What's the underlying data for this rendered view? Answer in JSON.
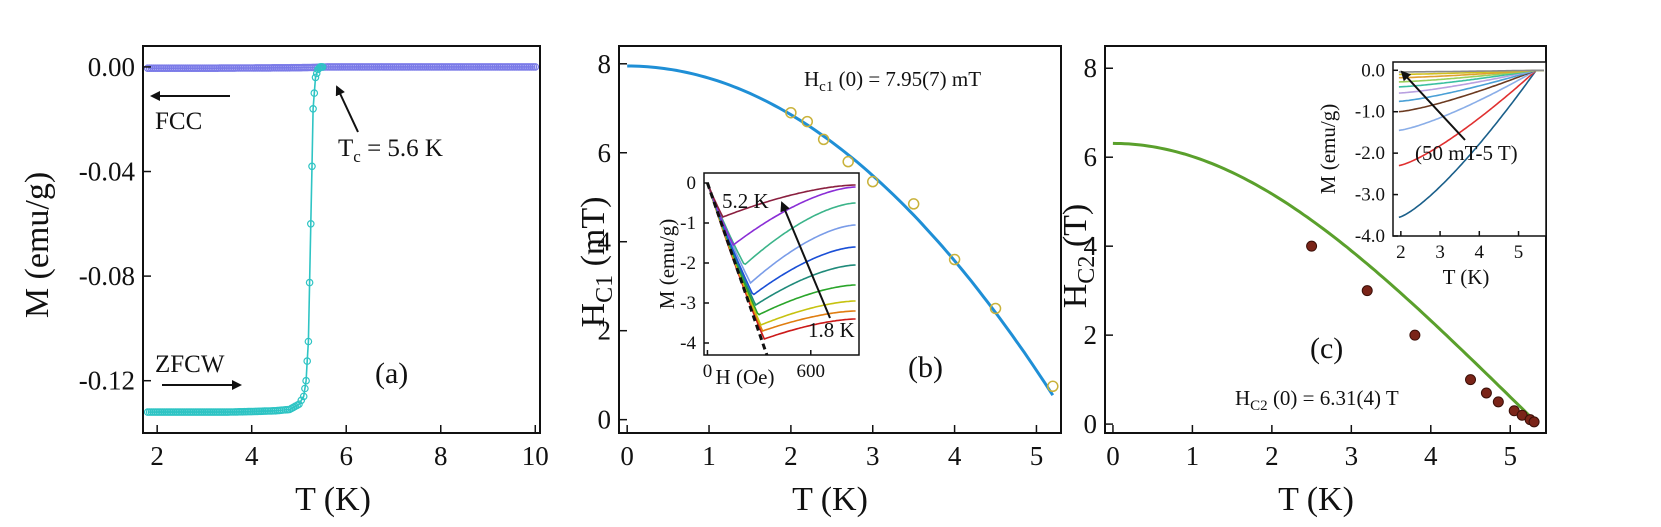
{
  "panels": {
    "a": {
      "label": "(a)",
      "xlabel": "T (K)",
      "ylabel": "M (emu/g)",
      "xticks": [
        "2",
        "4",
        "6",
        "8",
        "10"
      ],
      "yticks": [
        "0.00",
        "-0.04",
        "-0.08",
        "-0.12"
      ],
      "annot_fcc": "FCC",
      "annot_zfcw": "ZFCW",
      "annot_tc_main": "T",
      "annot_tc_sub": "c",
      "annot_tc_rest": " = 5.6 K"
    },
    "b": {
      "label": "(b)",
      "xlabel": "T (K)",
      "ylabel_main": "H",
      "ylabel_sub": "C1",
      "ylabel_rest": " (mT)",
      "xticks": [
        "0",
        "1",
        "2",
        "3",
        "4",
        "5"
      ],
      "yticks": [
        "0",
        "2",
        "4",
        "6",
        "8"
      ],
      "annot_main": "H",
      "annot_sub": "c1",
      "annot_rest": " (0) = 7.95(7) mT",
      "inset": {
        "xlabel": "H (Oe)",
        "ylabel": "M (emu/g)",
        "xticks": [
          "0",
          "600"
        ],
        "yticks": [
          "0",
          "-1",
          "-2",
          "-3",
          "-4"
        ],
        "annot_top": "5.2 K",
        "annot_bottom": "1.8 K"
      }
    },
    "c": {
      "label": "(c)",
      "xlabel": "T (K)",
      "ylabel_main": "H",
      "ylabel_sub": "C2",
      "ylabel_rest": " (T)",
      "xticks": [
        "0",
        "1",
        "2",
        "3",
        "4",
        "5"
      ],
      "yticks": [
        "0",
        "2",
        "4",
        "6",
        "8"
      ],
      "annot_main": "H",
      "annot_sub": "C2",
      "annot_rest": " (0) = 6.31(4)  T",
      "inset": {
        "xlabel": "T (K)",
        "ylabel": "M (emu/g)",
        "xticks": [
          "2",
          "3",
          "4",
          "5"
        ],
        "yticks": [
          "0.0",
          "-1.0",
          "-2.0",
          "-3.0",
          "-4.0"
        ],
        "annot": "(50 mT-5 T)"
      }
    }
  },
  "colors": {
    "fcc": "#7b7be8",
    "zfcw": "#2ec4c4",
    "hc1_fit": "#1f8fd6",
    "hc1_marker": "#c9b23a",
    "hc2_fit": "#5aa02c",
    "hc2_marker": "#7a2418"
  },
  "chart_data": [
    {
      "type": "line",
      "panel": "a",
      "xlabel": "T (K)",
      "ylabel": "M (emu/g)",
      "xlim": [
        1.7,
        10.1
      ],
      "ylim": [
        -0.14,
        0.008
      ],
      "series": [
        {
          "name": "FCC",
          "x": [
            1.8,
            2.0,
            3.0,
            4.0,
            5.0,
            5.3,
            5.6,
            6.0,
            7.0,
            8.0,
            9.0,
            10.0
          ],
          "y": [
            -0.0005,
            -0.0005,
            -0.0005,
            -0.0004,
            -0.0003,
            -0.0002,
            0.0,
            0.0,
            0.0,
            0.0,
            0.0,
            0.0
          ]
        },
        {
          "name": "ZFCW",
          "x": [
            1.8,
            2.0,
            2.5,
            3.0,
            3.5,
            4.0,
            4.5,
            4.8,
            5.0,
            5.1,
            5.15,
            5.2,
            5.25,
            5.3,
            5.35,
            5.4,
            5.45,
            5.5
          ],
          "y": [
            -0.132,
            -0.132,
            -0.132,
            -0.132,
            -0.132,
            -0.1318,
            -0.1315,
            -0.131,
            -0.129,
            -0.126,
            -0.12,
            -0.105,
            -0.06,
            -0.016,
            -0.004,
            -0.001,
            0.0,
            0.0
          ]
        }
      ]
    },
    {
      "type": "scatter",
      "panel": "b",
      "xlabel": "T (K)",
      "ylabel": "H_C1 (mT)",
      "xlim": [
        -0.1,
        5.3
      ],
      "ylim": [
        -0.3,
        8.4
      ],
      "series": [
        {
          "x": [
            2.0,
            2.2,
            2.4,
            2.7,
            3.0,
            3.5,
            4.0,
            4.5,
            5.2
          ],
          "y": [
            6.9,
            6.7,
            6.3,
            5.8,
            5.35,
            4.85,
            3.6,
            2.5,
            0.75
          ]
        }
      ],
      "fit": {
        "Hc0": 7.95,
        "Tc": 5.39
      }
    },
    {
      "type": "line",
      "panel": "b-inset",
      "xlabel": "H (Oe)",
      "ylabel": "M (emu/g)",
      "xlim": [
        -20,
        880
      ],
      "ylim": [
        -4.3,
        0.25
      ],
      "curves_count": 10,
      "temperature_range_K": [
        1.8,
        5.2
      ]
    },
    {
      "type": "scatter",
      "panel": "c",
      "xlabel": "T (K)",
      "ylabel": "H_C2 (T)",
      "xlim": [
        -0.1,
        5.45
      ],
      "ylim": [
        -0.2,
        8.5
      ],
      "series": [
        {
          "x": [
            2.5,
            3.2,
            3.8,
            4.5,
            4.7,
            4.85,
            5.05,
            5.15,
            5.25,
            5.3
          ],
          "y": [
            4.0,
            3.0,
            2.0,
            1.0,
            0.7,
            0.5,
            0.3,
            0.2,
            0.1,
            0.05
          ]
        }
      ],
      "fit": {
        "Hc0": 6.31,
        "Tc": 5.35
      }
    },
    {
      "type": "line",
      "panel": "c-inset",
      "xlabel": "T (K)",
      "ylabel": "M (emu/g)",
      "xlim": [
        1.8,
        5.7
      ],
      "ylim": [
        -4.0,
        0.2
      ],
      "curves_count": 11,
      "field_range": "50 mT-5 T"
    }
  ]
}
